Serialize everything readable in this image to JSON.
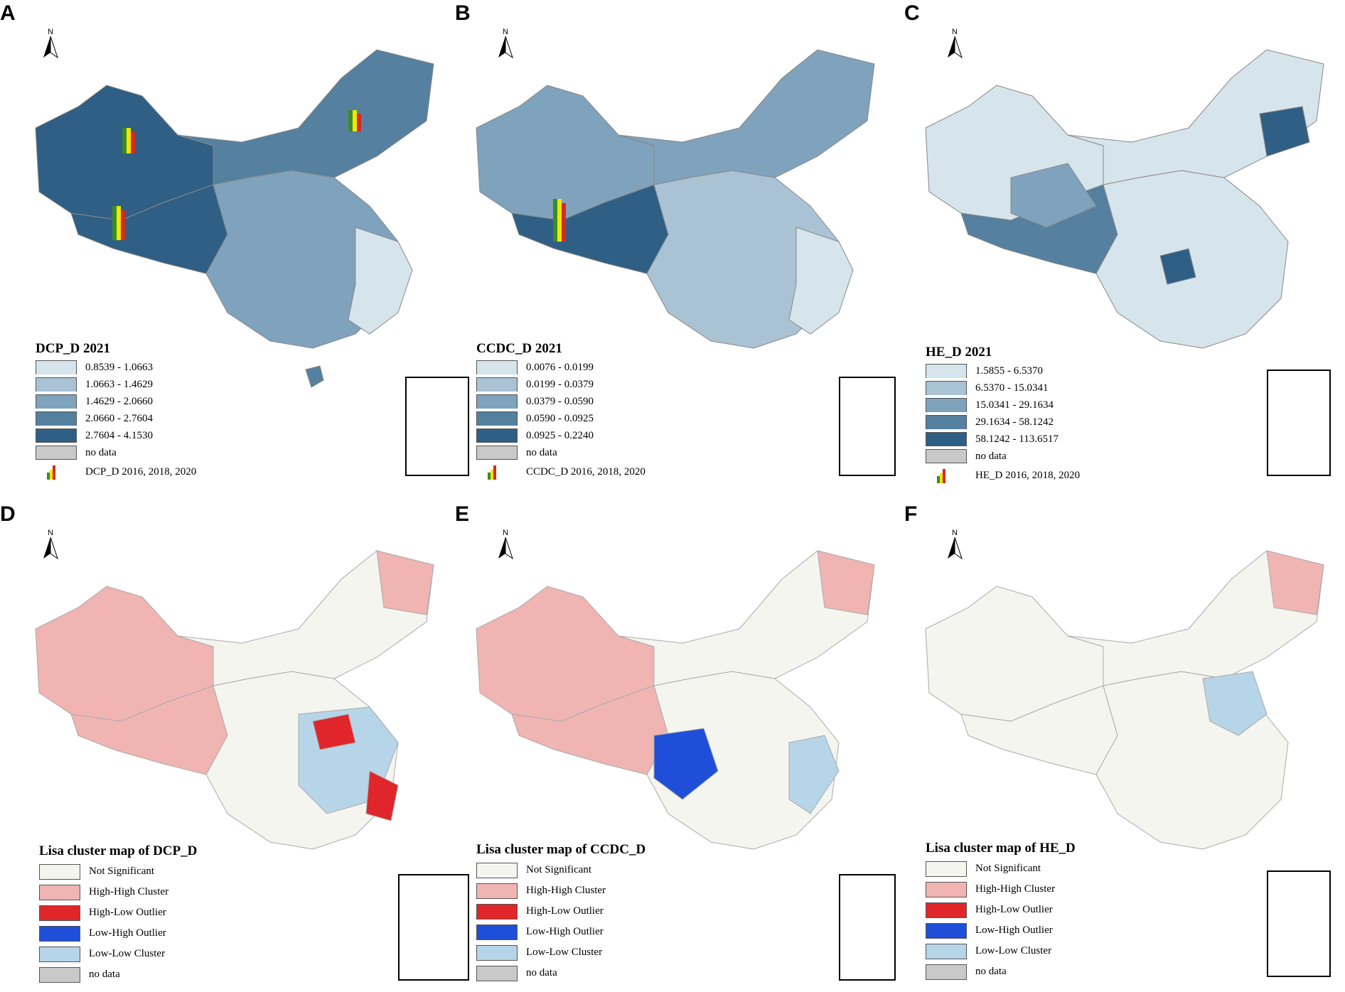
{
  "panels": [
    {
      "id": "A",
      "title": "DCP_D 2021",
      "classes": [
        {
          "label": "0.8539 - 1.0663",
          "color": "#d6e4ec"
        },
        {
          "label": "1.0663 - 1.4629",
          "color": "#a9c2d4"
        },
        {
          "label": "1.4629 - 2.0660",
          "color": "#7fa2bd"
        },
        {
          "label": "2.0660 - 2.7604",
          "color": "#55809f"
        },
        {
          "label": "2.7604 - 4.1530",
          "color": "#2f5f84"
        }
      ],
      "nodata": "no data",
      "bars_label": "DCP_D 2016, 2018, 2020"
    },
    {
      "id": "B",
      "title": "CCDC_D 2021",
      "classes": [
        {
          "label": "0.0076 - 0.0199",
          "color": "#d6e4ec"
        },
        {
          "label": "0.0199 - 0.0379",
          "color": "#a9c2d4"
        },
        {
          "label": "0.0379 - 0.0590",
          "color": "#7fa2bd"
        },
        {
          "label": "0.0590 - 0.0925",
          "color": "#55809f"
        },
        {
          "label": "0.0925 - 0.2240",
          "color": "#2f5f84"
        }
      ],
      "nodata": "no data",
      "bars_label": "CCDC_D 2016, 2018, 2020"
    },
    {
      "id": "C",
      "title": "HE_D 2021",
      "classes": [
        {
          "label": "1.5855 - 6.5370",
          "color": "#d6e4ec"
        },
        {
          "label": "6.5370 - 15.0341",
          "color": "#a9c2d4"
        },
        {
          "label": "15.0341 - 29.1634",
          "color": "#7fa2bd"
        },
        {
          "label": "29.1634 - 58.1242",
          "color": "#55809f"
        },
        {
          "label": "58.1242 - 113.6517",
          "color": "#2f5f84"
        }
      ],
      "nodata": "no data",
      "bars_label": "HE_D 2016, 2018, 2020"
    },
    {
      "id": "D",
      "title": "Lisa cluster map of DCP_D"
    },
    {
      "id": "E",
      "title": "Lisa cluster map of CCDC_D"
    },
    {
      "id": "F",
      "title": "Lisa cluster map of HE_D"
    }
  ],
  "lisa_classes": [
    {
      "label": "Not Significant",
      "color": "#f5f5f0"
    },
    {
      "label": "High-High Cluster",
      "color": "#f0b5b2"
    },
    {
      "label": "High-Low Outlier",
      "color": "#e0262a"
    },
    {
      "label": "Low-High Outlier",
      "color": "#1f4fd9"
    },
    {
      "label": "Low-Low Cluster",
      "color": "#b7d5e8"
    },
    {
      "label": "no data",
      "color": "#c9c9c9"
    }
  ],
  "north_label": "N",
  "bar_colors": [
    "#3a8a2a",
    "#f2e600",
    "#d42a1e"
  ],
  "nodata_color": "#c9c9c9"
}
